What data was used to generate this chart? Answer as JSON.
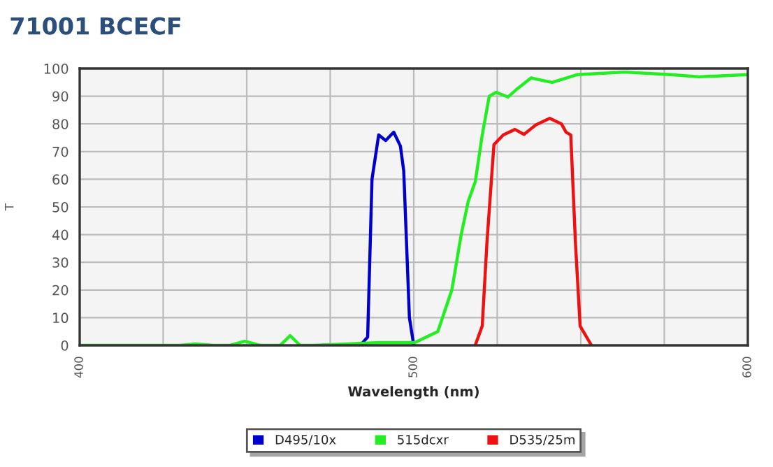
{
  "chart_data": {
    "type": "line",
    "title": "71001 BCECF",
    "xlabel": "Wavelength (nm)",
    "ylabel": "T",
    "xlim": [
      400,
      600
    ],
    "ylim": [
      0,
      100
    ],
    "xticks": [
      400,
      {
        "value": 425,
        "label": null
      },
      {
        "value": 450,
        "label": null
      },
      {
        "value": 475,
        "label": null
      },
      500,
      {
        "value": 525,
        "label": null
      },
      {
        "value": 550,
        "label": null
      },
      {
        "value": 575,
        "label": null
      },
      600
    ],
    "yticks": [
      0,
      10,
      20,
      30,
      40,
      50,
      60,
      70,
      80,
      90,
      100
    ],
    "grid": true,
    "legend": "bottom",
    "marker": "none",
    "line_style": "solid",
    "series": [
      {
        "name": "D495/10x",
        "color": "#0000cc",
        "x": [
          484,
          486.2,
          487.5,
          489.5,
          491.6,
          494,
          496,
          497,
          498.7,
          500
        ],
        "values": [
          0,
          3,
          60,
          76,
          74,
          77,
          72,
          63,
          10,
          0
        ]
      },
      {
        "name": "515dcxr",
        "color": "#22ee22",
        "x": [
          400,
          430,
          434.7,
          440,
          445,
          449.4,
          454,
          460,
          463,
          466,
          470,
          480,
          490,
          500.3,
          507.2,
          511.4,
          514.2,
          516.3,
          518.4,
          520.5,
          522.6,
          524.7,
          528.2,
          531,
          535.1,
          541.4,
          549,
          563,
          577,
          585.4,
          600
        ],
        "values": [
          0,
          0,
          0.5,
          0,
          0,
          1.5,
          0,
          0,
          3.5,
          0,
          0,
          0.5,
          1,
          1,
          5,
          20,
          40,
          52,
          59,
          76,
          90,
          91.4,
          89.7,
          92.7,
          96.6,
          95,
          97.8,
          98.7,
          97.8,
          97,
          97.8
        ]
      },
      {
        "name": "D535/25m",
        "color": "#ee1111",
        "x": [
          518.4,
          520.5,
          521.9,
          524,
          526.8,
          530.3,
          533,
          536.5,
          540.7,
          544.2,
          545.6,
          547,
          548.4,
          549.8,
          553.2
        ],
        "values": [
          0,
          7,
          37,
          72.5,
          76,
          78,
          76.2,
          79.6,
          82,
          80,
          77,
          76,
          37,
          7,
          0
        ]
      }
    ]
  }
}
